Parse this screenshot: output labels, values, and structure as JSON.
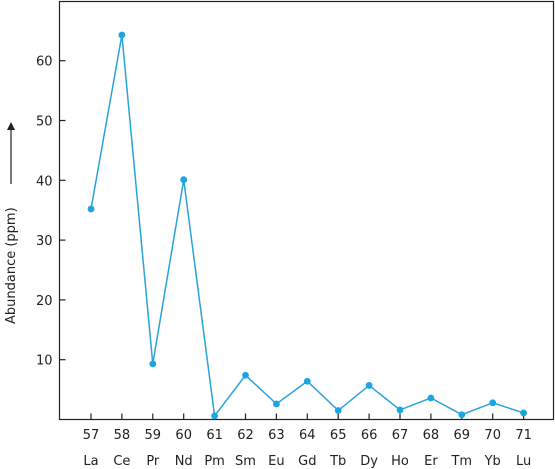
{
  "chart_data": {
    "type": "line",
    "title": "",
    "xlabel": "",
    "ylabel": "Abundance (ppm)",
    "ylim": [
      0,
      67
    ],
    "yticks": [
      10,
      20,
      30,
      40,
      50,
      60
    ],
    "x": [
      57,
      58,
      59,
      60,
      61,
      62,
      63,
      64,
      65,
      66,
      67,
      68,
      69,
      70,
      71
    ],
    "categories": [
      "La",
      "Ce",
      "Pr",
      "Nd",
      "Pm",
      "Sm",
      "Eu",
      "Gd",
      "Tb",
      "Dy",
      "Ho",
      "Er",
      "Tm",
      "Yb",
      "Lu"
    ],
    "series": [
      {
        "values": [
          35.2,
          64.3,
          9.3,
          40.1,
          0.6,
          7.4,
          2.6,
          6.4,
          1.5,
          5.7,
          1.6,
          3.6,
          0.8,
          2.8,
          1.1
        ]
      }
    ],
    "grid": false,
    "colors": {
      "line": "#29a3d9",
      "marker": "#1aa6e0",
      "axis": "#222222"
    }
  }
}
